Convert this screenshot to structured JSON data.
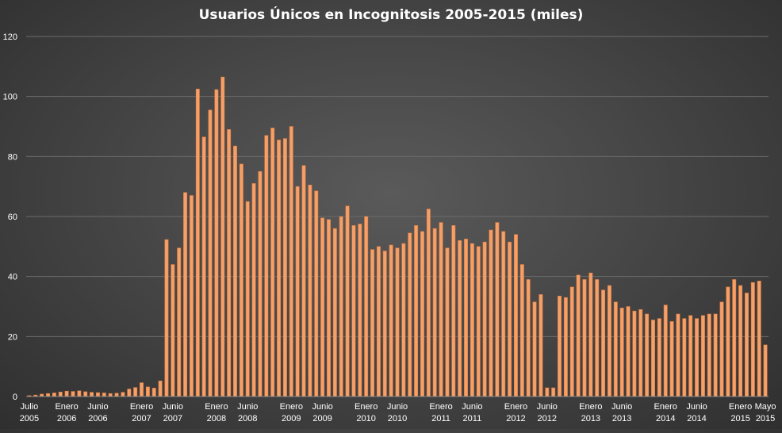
{
  "chart_data": {
    "type": "bar",
    "title": "Usuarios Únicos en Incognitosis 2005-2015 (miles)",
    "xlabel": "",
    "ylabel": "",
    "ylim": [
      0,
      120
    ],
    "yticks": [
      0,
      20,
      40,
      60,
      80,
      100,
      120
    ],
    "grid": true,
    "legend": "none",
    "colors": {
      "bar_fill": "#f4a06a",
      "bar_edge": "#e07a3c",
      "grid": "#6b6b6b"
    },
    "x_tick_labels": [
      {
        "index": 0,
        "line1": "Julio",
        "line2": "2005"
      },
      {
        "index": 6,
        "line1": "Enero",
        "line2": "2006"
      },
      {
        "index": 11,
        "line1": "Junio",
        "line2": "2006"
      },
      {
        "index": 18,
        "line1": "Enero",
        "line2": "2007"
      },
      {
        "index": 23,
        "line1": "Junio",
        "line2": "2007"
      },
      {
        "index": 30,
        "line1": "Enero",
        "line2": "2008"
      },
      {
        "index": 35,
        "line1": "Junio",
        "line2": "2008"
      },
      {
        "index": 42,
        "line1": "Enero",
        "line2": "2009"
      },
      {
        "index": 47,
        "line1": "Junio",
        "line2": "2009"
      },
      {
        "index": 54,
        "line1": "Enero",
        "line2": "2010"
      },
      {
        "index": 59,
        "line1": "Junio",
        "line2": "2010"
      },
      {
        "index": 66,
        "line1": "Enero",
        "line2": "2011"
      },
      {
        "index": 71,
        "line1": "Junio",
        "line2": "2011"
      },
      {
        "index": 78,
        "line1": "Enero",
        "line2": "2012"
      },
      {
        "index": 83,
        "line1": "Junio",
        "line2": "2012"
      },
      {
        "index": 90,
        "line1": "Enero",
        "line2": "2013"
      },
      {
        "index": 95,
        "line1": "Junio",
        "line2": "2013"
      },
      {
        "index": 102,
        "line1": "Enero",
        "line2": "2014"
      },
      {
        "index": 107,
        "line1": "Junio",
        "line2": "2014"
      },
      {
        "index": 114,
        "line1": "Enero",
        "line2": "2015"
      },
      {
        "index": 118,
        "line1": "Mayo",
        "line2": "2015"
      }
    ],
    "values": [
      0.3,
      0.5,
      0.8,
      1.0,
      1.2,
      1.5,
      1.8,
      1.7,
      1.9,
      1.6,
      1.4,
      1.3,
      1.2,
      1.0,
      1.1,
      1.4,
      2.5,
      3.0,
      4.6,
      3.2,
      2.8,
      5.2,
      52.3,
      44.0,
      49.5,
      68.0,
      67.0,
      102.5,
      86.5,
      95.5,
      102.3,
      106.5,
      89.0,
      83.5,
      77.5,
      65.0,
      71.0,
      75.0,
      87.0,
      89.5,
      85.5,
      86.0,
      90.0,
      70.0,
      77.0,
      70.5,
      68.5,
      59.5,
      59.0,
      56.0,
      60.0,
      63.5,
      57.0,
      57.5,
      60.0,
      49.0,
      50.0,
      48.5,
      50.5,
      49.5,
      51.0,
      54.5,
      57.0,
      55.0,
      62.5,
      56.0,
      58.0,
      49.5,
      57.0,
      52.0,
      52.5,
      51.0,
      50.0,
      51.5,
      55.5,
      58.0,
      55.0,
      51.5,
      54.0,
      44.0,
      39.0,
      31.5,
      34.0,
      2.9,
      2.9,
      33.5,
      33.0,
      36.5,
      40.5,
      39.0,
      41.2,
      39.0,
      35.5,
      37.0,
      31.5,
      29.5,
      30.0,
      28.5,
      29.0,
      27.5,
      25.5,
      26.0,
      30.5,
      25.0,
      27.5,
      26.0,
      27.0,
      26.0,
      27.0,
      27.5,
      27.5,
      31.5,
      36.5,
      39.0,
      37.0,
      34.5,
      38.0,
      38.5,
      17.2
    ]
  }
}
